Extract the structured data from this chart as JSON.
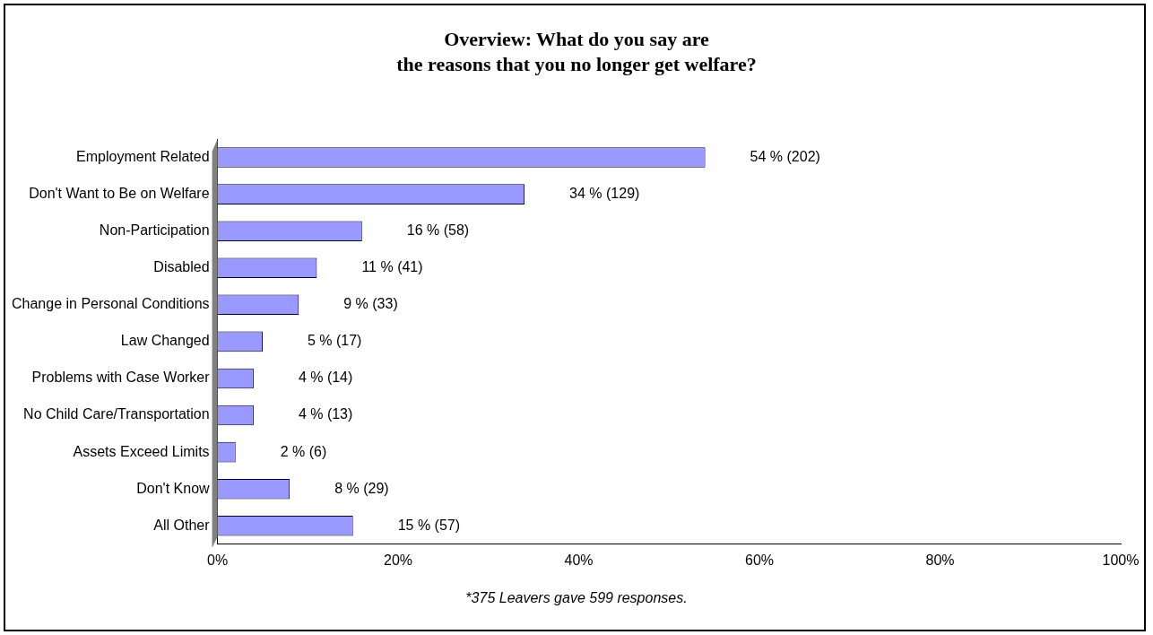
{
  "chart_data": {
    "type": "bar",
    "orientation": "horizontal",
    "title": "Overview: What do you say are\nthe reasons that you no longer get welfare?",
    "categories": [
      "Employment Related",
      "Don't Want to Be on Welfare",
      "Non-Participation",
      "Disabled",
      "Change in Personal Conditions",
      "Law Changed",
      "Problems with Case Worker",
      "No Child Care/Transportation",
      "Assets Exceed Limits",
      "Don't Know",
      "All Other"
    ],
    "values": [
      54,
      34,
      16,
      11,
      9,
      5,
      4,
      4,
      2,
      8,
      15
    ],
    "value_labels": [
      "54 % (202)",
      "34 % (129)",
      "16 % (58)",
      "11 % (41)",
      "9 % (33)",
      "5 % (17)",
      "4 % (14)",
      "4 % (13)",
      "2 % (6)",
      "8 % (29)",
      "15 % (57)"
    ],
    "color": "#9999ff",
    "xlim": [
      0,
      100
    ],
    "xticks": [
      {
        "value": 0,
        "label": "0%"
      },
      {
        "value": 20,
        "label": "20%"
      },
      {
        "value": 40,
        "label": "40%"
      },
      {
        "value": 60,
        "label": "60%"
      },
      {
        "value": 80,
        "label": "80%"
      },
      {
        "value": 100,
        "label": "100%"
      }
    ],
    "grid": false,
    "legend": false,
    "annotations": [
      "*375  Leavers gave 599 responses."
    ]
  }
}
